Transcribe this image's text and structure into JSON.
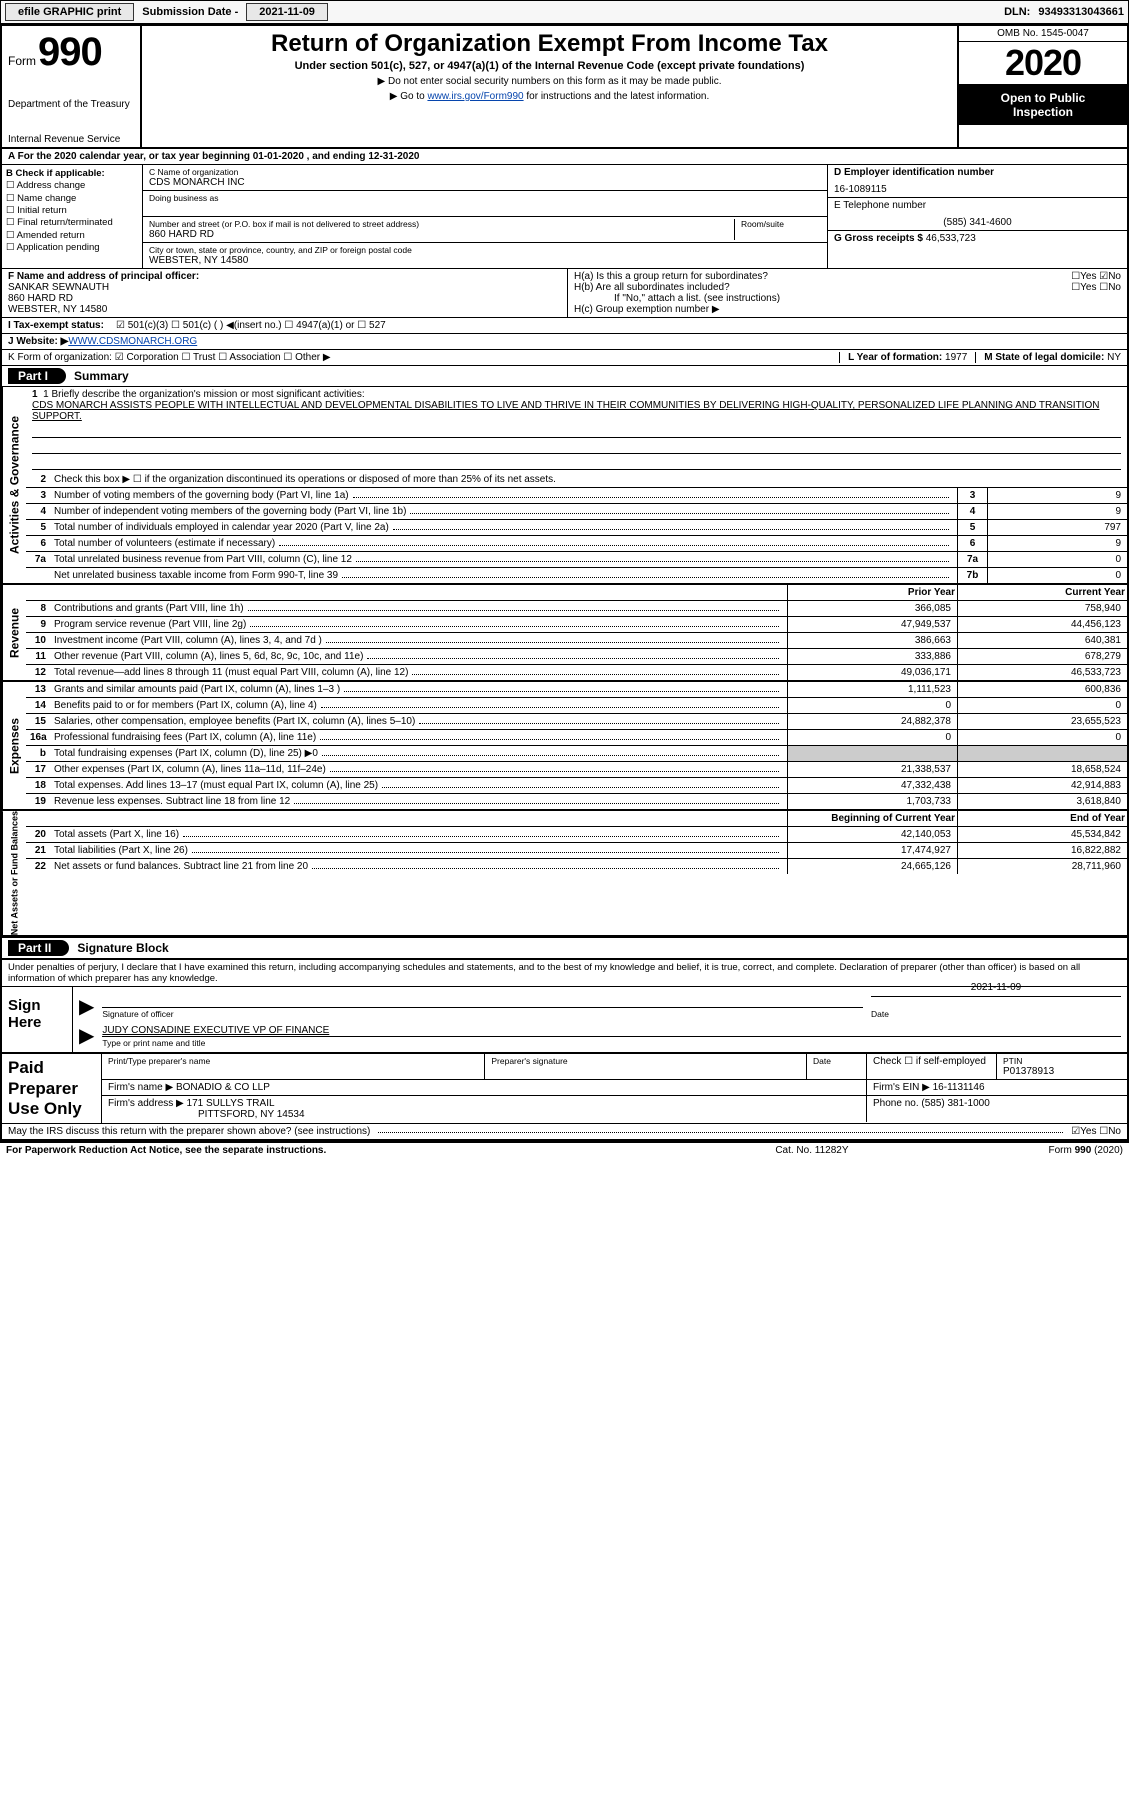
{
  "topbar": {
    "efile": "efile GRAPHIC print",
    "subdate_label": "Submission Date - ",
    "subdate": "2021-11-09",
    "dln_label": "DLN: ",
    "dln": "93493313043661"
  },
  "header": {
    "form_word": "Form",
    "form_num": "990",
    "dept": "Department of the Treasury",
    "irs": "Internal Revenue Service",
    "title": "Return of Organization Exempt From Income Tax",
    "sub": "Under section 501(c), 527, or 4947(a)(1) of the Internal Revenue Code (except private foundations)",
    "note1": "▶ Do not enter social security numbers on this form as it may be made public.",
    "note2_pre": "▶ Go to ",
    "note2_link": "www.irs.gov/Form990",
    "note2_post": " for instructions and the latest information.",
    "omb": "OMB No. 1545-0047",
    "year": "2020",
    "inspect1": "Open to Public",
    "inspect2": "Inspection"
  },
  "rowA": "A For the 2020 calendar year, or tax year beginning 01-01-2020   , and ending 12-31-2020",
  "boxB": {
    "label": "B Check if applicable:",
    "items": [
      "☐ Address change",
      "☐ Name change",
      "☐ Initial return",
      "☐ Final return/terminated",
      "☐ Amended return",
      "☐ Application pending"
    ]
  },
  "boxC": {
    "name_lbl": "C Name of organization",
    "name": "CDS MONARCH INC",
    "dba_lbl": "Doing business as",
    "addr_lbl": "Number and street (or P.O. box if mail is not delivered to street address)",
    "room_lbl": "Room/suite",
    "addr": "860 HARD RD",
    "city_lbl": "City or town, state or province, country, and ZIP or foreign postal code",
    "city": "WEBSTER, NY  14580"
  },
  "boxDE": {
    "d_lbl": "D Employer identification number",
    "d_val": "16-1089115",
    "e_lbl": "E Telephone number",
    "e_val": "(585) 341-4600",
    "g_lbl": "G Gross receipts $ ",
    "g_val": "46,533,723"
  },
  "boxF": {
    "lbl": "F  Name and address of principal officer:",
    "name": "SANKAR SEWNAUTH",
    "addr1": "860 HARD RD",
    "addr2": "WEBSTER, NY  14580"
  },
  "boxH": {
    "a": "H(a)  Is this a group return for subordinates?",
    "a_yn": "☐Yes ☑No",
    "b": "H(b)  Are all subordinates included?",
    "b_yn": "☐Yes ☐No",
    "b_note": "If \"No,\" attach a list. (see instructions)",
    "c": "H(c)  Group exemption number ▶"
  },
  "rowI": {
    "lbl": "I  Tax-exempt status:",
    "opts": "☑ 501(c)(3)    ☐ 501(c) (  ) ◀(insert no.)    ☐ 4947(a)(1) or   ☐ 527"
  },
  "rowJ": {
    "lbl": "J  Website: ▶ ",
    "val": "WWW.CDSMONARCH.ORG"
  },
  "rowK": {
    "lbl": "K Form of organization:  ☑ Corporation  ☐ Trust  ☐ Association  ☐ Other ▶",
    "l_lbl": "L Year of formation: ",
    "l_val": "1977",
    "m_lbl": "M State of legal domicile: ",
    "m_val": "NY"
  },
  "part1": {
    "hdr": "Part I",
    "title": "Summary",
    "side_ag": "Activities & Governance",
    "side_rev": "Revenue",
    "side_exp": "Expenses",
    "side_na": "Net Assets or Fund Balances",
    "line1_lbl": "1  Briefly describe the organization's mission or most significant activities:",
    "line1_text": "CDS MONARCH ASSISTS PEOPLE WITH INTELLECTUAL AND DEVELOPMENTAL DISABILITIES TO LIVE AND THRIVE IN THEIR COMMUNITIES BY DELIVERING HIGH-QUALITY, PERSONALIZED LIFE PLANNING AND TRANSITION SUPPORT.",
    "line2": "Check this box ▶ ☐  if the organization discontinued its operations or disposed of more than 25% of its net assets.",
    "pyhdr": "Prior Year",
    "cyhdr": "Current Year",
    "bcyhdr": "Beginning of Current Year",
    "eoyhdr": "End of Year",
    "lines_ag": [
      {
        "n": "3",
        "d": "Number of voting members of the governing body (Part VI, line 1a)",
        "box": "3",
        "v": "9"
      },
      {
        "n": "4",
        "d": "Number of independent voting members of the governing body (Part VI, line 1b)",
        "box": "4",
        "v": "9"
      },
      {
        "n": "5",
        "d": "Total number of individuals employed in calendar year 2020 (Part V, line 2a)",
        "box": "5",
        "v": "797"
      },
      {
        "n": "6",
        "d": "Total number of volunteers (estimate if necessary)",
        "box": "6",
        "v": "9"
      },
      {
        "n": "7a",
        "d": "Total unrelated business revenue from Part VIII, column (C), line 12",
        "box": "7a",
        "v": "0"
      },
      {
        "n": "",
        "d": "Net unrelated business taxable income from Form 990-T, line 39",
        "box": "7b",
        "v": "0"
      }
    ],
    "lines_rev": [
      {
        "n": "8",
        "d": "Contributions and grants (Part VIII, line 1h)",
        "py": "366,085",
        "cy": "758,940"
      },
      {
        "n": "9",
        "d": "Program service revenue (Part VIII, line 2g)",
        "py": "47,949,537",
        "cy": "44,456,123"
      },
      {
        "n": "10",
        "d": "Investment income (Part VIII, column (A), lines 3, 4, and 7d )",
        "py": "386,663",
        "cy": "640,381"
      },
      {
        "n": "11",
        "d": "Other revenue (Part VIII, column (A), lines 5, 6d, 8c, 9c, 10c, and 11e)",
        "py": "333,886",
        "cy": "678,279"
      },
      {
        "n": "12",
        "d": "Total revenue—add lines 8 through 11 (must equal Part VIII, column (A), line 12)",
        "py": "49,036,171",
        "cy": "46,533,723"
      }
    ],
    "lines_exp": [
      {
        "n": "13",
        "d": "Grants and similar amounts paid (Part IX, column (A), lines 1–3 )",
        "py": "1,111,523",
        "cy": "600,836"
      },
      {
        "n": "14",
        "d": "Benefits paid to or for members (Part IX, column (A), line 4)",
        "py": "0",
        "cy": "0"
      },
      {
        "n": "15",
        "d": "Salaries, other compensation, employee benefits (Part IX, column (A), lines 5–10)",
        "py": "24,882,378",
        "cy": "23,655,523"
      },
      {
        "n": "16a",
        "d": "Professional fundraising fees (Part IX, column (A), line 11e)",
        "py": "0",
        "cy": "0"
      },
      {
        "n": "b",
        "d": "Total fundraising expenses (Part IX, column (D), line 25) ▶0",
        "py": "GREY",
        "cy": "GREY"
      },
      {
        "n": "17",
        "d": "Other expenses (Part IX, column (A), lines 11a–11d, 11f–24e)",
        "py": "21,338,537",
        "cy": "18,658,524"
      },
      {
        "n": "18",
        "d": "Total expenses. Add lines 13–17 (must equal Part IX, column (A), line 25)",
        "py": "47,332,438",
        "cy": "42,914,883"
      },
      {
        "n": "19",
        "d": "Revenue less expenses. Subtract line 18 from line 12",
        "py": "1,703,733",
        "cy": "3,618,840"
      }
    ],
    "lines_na": [
      {
        "n": "20",
        "d": "Total assets (Part X, line 16)",
        "py": "42,140,053",
        "cy": "45,534,842"
      },
      {
        "n": "21",
        "d": "Total liabilities (Part X, line 26)",
        "py": "17,474,927",
        "cy": "16,822,882"
      },
      {
        "n": "22",
        "d": "Net assets or fund balances. Subtract line 21 from line 20",
        "py": "24,665,126",
        "cy": "28,711,960"
      }
    ]
  },
  "part2": {
    "hdr": "Part II",
    "title": "Signature Block",
    "decl": "Under penalties of perjury, I declare that I have examined this return, including accompanying schedules and statements, and to the best of my knowledge and belief, it is true, correct, and complete. Declaration of preparer (other than officer) is based on all information of which preparer has any knowledge.",
    "sign_here": "Sign Here",
    "sig_lbl": "Signature of officer",
    "date_lbl": "Date",
    "date_val": "2021-11-09",
    "name_val": "JUDY CONSADINE  EXECUTIVE VP OF FINANCE",
    "name_lbl": "Type or print name and title",
    "paid": "Paid Preparer Use Only",
    "p_name_lbl": "Print/Type preparer's name",
    "p_sig_lbl": "Preparer's signature",
    "p_date_lbl": "Date",
    "p_chk": "Check ☐ if self-employed",
    "ptin_lbl": "PTIN",
    "ptin": "P01378913",
    "firm_name_lbl": "Firm's name      ▶ ",
    "firm_name": "BONADIO & CO LLP",
    "firm_ein_lbl": "Firm's EIN ▶ ",
    "firm_ein": "16-1131146",
    "firm_addr_lbl": "Firm's address ▶ ",
    "firm_addr1": "171 SULLYS TRAIL",
    "firm_addr2": "PITTSFORD, NY  14534",
    "phone_lbl": "Phone no. ",
    "phone": "(585) 381-1000",
    "discuss": "May the IRS discuss this return with the preparer shown above? (see instructions)",
    "discuss_yn": "☑Yes  ☐No"
  },
  "footer": {
    "pra": "For Paperwork Reduction Act Notice, see the separate instructions.",
    "cat": "Cat. No. 11282Y",
    "form": "Form 990 (2020)"
  }
}
